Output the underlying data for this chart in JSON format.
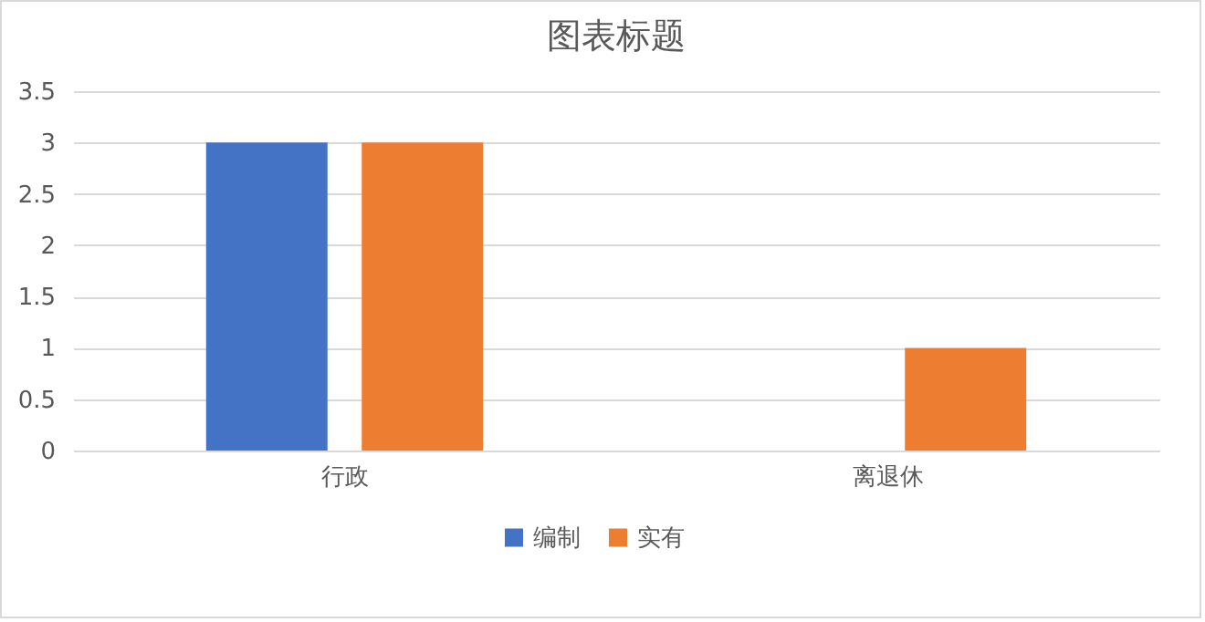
{
  "chart_data": {
    "type": "bar",
    "title": "图表标题",
    "categories": [
      "行政",
      "离退休"
    ],
    "series": [
      {
        "name": "编制",
        "color": "#4472c4",
        "values": [
          3,
          null
        ]
      },
      {
        "name": "实有",
        "color": "#ed7d31",
        "values": [
          3,
          1
        ]
      }
    ],
    "ylim": [
      0,
      3.5
    ],
    "yticks": [
      0,
      0.5,
      1,
      1.5,
      2,
      2.5,
      3,
      3.5
    ],
    "grid": "y",
    "legend": "bottom"
  }
}
